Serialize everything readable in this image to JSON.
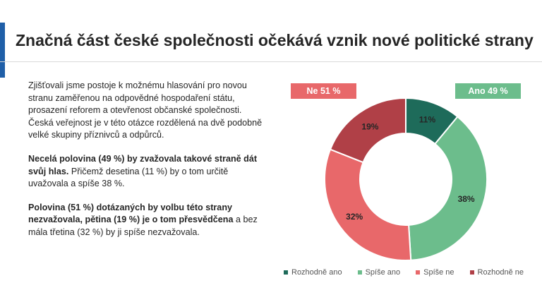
{
  "header": {
    "title": "Značná část české společnosti očekává vznik nové politické strany"
  },
  "text": {
    "p1": "Zjišťovali jsme postoje k možnému hlasování pro novou stranu zaměřenou na odpovědné hospodaření státu, prosazení reforem a otevřenost občanské společnosti. Česká veřejnost je v této otázce rozdělená na dvě podobně velké skupiny příznivců a odpůrců.",
    "p2_bold": "Necelá polovina (49 %) by zvažovala takové straně dát svůj hlas.",
    "p2_rest": " Přičemž desetina (11 %) by o tom určitě uvažovala a spíše 38 %.",
    "p3_bold": "Polovina (51 %) dotázaných by volbu této strany nezvažovala, pětina (19 %) je o tom přesvědčena",
    "p3_rest": " a bez mála třetina (32 %) by ji spíše nezvažovala."
  },
  "chart_data": {
    "type": "pie",
    "variant": "donut",
    "title": "",
    "categories": [
      "Rozhodně ano",
      "Spíše ano",
      "Spíše ne",
      "Rozhodně ne"
    ],
    "values": [
      11,
      38,
      32,
      19
    ],
    "value_labels": [
      "11%",
      "38%",
      "32%",
      "19%"
    ],
    "colors": [
      "#1e6b5a",
      "#6cbd8c",
      "#e8686a",
      "#b04047"
    ],
    "groups": [
      {
        "label": "Ne 51 %",
        "color": "#e8686a"
      },
      {
        "label": "Ano 49 %",
        "color": "#6cbd8c"
      }
    ],
    "legend": "bottom"
  }
}
